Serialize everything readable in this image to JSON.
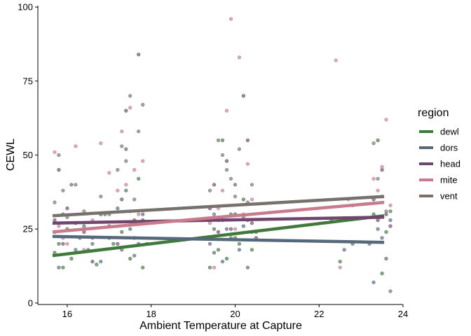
{
  "chart_data": {
    "type": "scatter",
    "title": "",
    "xlabel": "Ambient Temperature at Capture",
    "ylabel": "CEWL",
    "xlim": [
      15.3,
      24.0
    ],
    "ylim": [
      -0.5,
      100.5
    ],
    "x_ticks": [
      16,
      18,
      20,
      22,
      24
    ],
    "y_ticks": [
      0,
      25,
      50,
      75,
      100
    ],
    "grid": false,
    "legend": {
      "title": "region",
      "placement": "right"
    },
    "series": [
      {
        "name": "dewl",
        "color": "#3f7a3b",
        "trend": [
          [
            15.65,
            16.0
          ],
          [
            23.55,
            29.5
          ]
        ],
        "points": [
          [
            15.7,
            17
          ],
          [
            15.8,
            20
          ],
          [
            15.9,
            12
          ],
          [
            16.0,
            25
          ],
          [
            16.1,
            15
          ],
          [
            16.3,
            22
          ],
          [
            16.5,
            18
          ],
          [
            16.7,
            13
          ],
          [
            16.9,
            30
          ],
          [
            17.1,
            20
          ],
          [
            17.3,
            24
          ],
          [
            17.4,
            38
          ],
          [
            17.5,
            15
          ],
          [
            17.6,
            28
          ],
          [
            17.7,
            42
          ],
          [
            17.8,
            12
          ],
          [
            17.9,
            20
          ],
          [
            19.4,
            12
          ],
          [
            19.5,
            25
          ],
          [
            19.6,
            18
          ],
          [
            19.7,
            55
          ],
          [
            19.8,
            15
          ],
          [
            19.9,
            30
          ],
          [
            20.0,
            22
          ],
          [
            20.1,
            20
          ],
          [
            20.2,
            35
          ],
          [
            20.3,
            28
          ],
          [
            20.4,
            18
          ],
          [
            20.5,
            24
          ],
          [
            22.3,
            28
          ],
          [
            22.5,
            14
          ],
          [
            22.8,
            20
          ],
          [
            23.3,
            30
          ],
          [
            23.4,
            55
          ],
          [
            23.5,
            10
          ],
          [
            23.6,
            24
          ],
          [
            23.7,
            31
          ]
        ]
      },
      {
        "name": "dors",
        "color": "#55697a",
        "trend": [
          [
            15.65,
            22.5
          ],
          [
            23.55,
            20.5
          ]
        ],
        "points": [
          [
            15.7,
            24
          ],
          [
            15.8,
            12
          ],
          [
            15.9,
            30
          ],
          [
            16.1,
            40
          ],
          [
            16.2,
            18
          ],
          [
            16.4,
            26
          ],
          [
            16.6,
            20
          ],
          [
            16.8,
            14
          ],
          [
            17.0,
            22
          ],
          [
            17.2,
            32
          ],
          [
            17.3,
            18
          ],
          [
            17.4,
            52
          ],
          [
            17.5,
            25
          ],
          [
            17.6,
            16
          ],
          [
            17.7,
            20
          ],
          [
            17.8,
            30
          ],
          [
            19.4,
            20
          ],
          [
            19.5,
            17
          ],
          [
            19.6,
            28
          ],
          [
            19.7,
            14
          ],
          [
            19.8,
            25
          ],
          [
            19.9,
            22
          ],
          [
            20.0,
            40
          ],
          [
            20.1,
            18
          ],
          [
            20.2,
            26
          ],
          [
            20.3,
            12
          ],
          [
            20.4,
            24
          ],
          [
            22.6,
            18
          ],
          [
            23.2,
            20
          ],
          [
            23.3,
            7
          ],
          [
            23.4,
            25
          ],
          [
            23.5,
            22
          ],
          [
            23.6,
            15
          ],
          [
            23.7,
            28
          ]
        ]
      },
      {
        "name": "head",
        "color": "#70466e",
        "trend": [
          [
            15.65,
            27.0
          ],
          [
            23.55,
            29.0
          ]
        ],
        "points": [
          [
            15.7,
            28
          ],
          [
            15.8,
            45
          ],
          [
            15.9,
            20
          ],
          [
            16.0,
            32
          ],
          [
            16.2,
            27
          ],
          [
            16.4,
            24
          ],
          [
            16.6,
            14
          ],
          [
            16.8,
            30
          ],
          [
            17.0,
            26
          ],
          [
            17.2,
            20
          ],
          [
            17.3,
            35
          ],
          [
            17.4,
            65
          ],
          [
            17.5,
            31
          ],
          [
            17.6,
            22
          ],
          [
            17.7,
            84
          ],
          [
            17.8,
            28
          ],
          [
            19.4,
            32
          ],
          [
            19.5,
            40
          ],
          [
            19.6,
            24
          ],
          [
            19.7,
            28
          ],
          [
            19.8,
            48
          ],
          [
            19.9,
            25
          ],
          [
            20.0,
            30
          ],
          [
            20.2,
            70
          ],
          [
            20.3,
            55
          ],
          [
            20.4,
            27
          ],
          [
            20.5,
            22
          ],
          [
            23.3,
            35
          ],
          [
            23.4,
            28
          ],
          [
            23.5,
            45
          ],
          [
            23.6,
            30
          ],
          [
            23.7,
            26
          ]
        ]
      },
      {
        "name": "mite",
        "color": "#c77b8d",
        "trend": [
          [
            15.65,
            24.0
          ],
          [
            23.55,
            34.0
          ]
        ],
        "points": [
          [
            15.7,
            51
          ],
          [
            15.8,
            26
          ],
          [
            15.9,
            22
          ],
          [
            16.0,
            20
          ],
          [
            16.2,
            53
          ],
          [
            16.4,
            18
          ],
          [
            16.6,
            28
          ],
          [
            16.8,
            54
          ],
          [
            17.0,
            44
          ],
          [
            17.2,
            38
          ],
          [
            17.3,
            58
          ],
          [
            17.4,
            40
          ],
          [
            17.5,
            66
          ],
          [
            17.6,
            45
          ],
          [
            17.7,
            30
          ],
          [
            17.8,
            48
          ],
          [
            19.4,
            27
          ],
          [
            19.5,
            12
          ],
          [
            19.6,
            32
          ],
          [
            19.7,
            38
          ],
          [
            19.8,
            65
          ],
          [
            19.9,
            96
          ],
          [
            20.0,
            25
          ],
          [
            20.1,
            83
          ],
          [
            20.2,
            30
          ],
          [
            20.3,
            47
          ],
          [
            20.4,
            35
          ],
          [
            22.4,
            82
          ],
          [
            22.5,
            12
          ],
          [
            22.7,
            35
          ],
          [
            23.3,
            42
          ],
          [
            23.4,
            38
          ],
          [
            23.5,
            46
          ],
          [
            23.6,
            62
          ],
          [
            23.7,
            33
          ]
        ]
      },
      {
        "name": "vent",
        "color": "#76716c",
        "trend": [
          [
            15.65,
            29.5
          ],
          [
            23.55,
            36.0
          ]
        ],
        "points": [
          [
            15.7,
            34
          ],
          [
            15.8,
            50
          ],
          [
            15.9,
            38
          ],
          [
            16.0,
            29
          ],
          [
            16.2,
            40
          ],
          [
            16.4,
            31
          ],
          [
            16.6,
            22
          ],
          [
            16.8,
            36
          ],
          [
            17.0,
            30
          ],
          [
            17.2,
            45
          ],
          [
            17.3,
            53
          ],
          [
            17.4,
            48
          ],
          [
            17.5,
            70
          ],
          [
            17.6,
            35
          ],
          [
            17.7,
            58
          ],
          [
            17.8,
            67
          ],
          [
            19.4,
            38
          ],
          [
            19.5,
            30
          ],
          [
            19.6,
            55
          ],
          [
            19.7,
            50
          ],
          [
            19.8,
            45
          ],
          [
            19.9,
            42
          ],
          [
            20.0,
            36
          ],
          [
            20.1,
            52
          ],
          [
            20.2,
            29
          ],
          [
            20.3,
            34
          ],
          [
            20.4,
            40
          ],
          [
            22.8,
            33
          ],
          [
            23.3,
            54
          ],
          [
            23.4,
            42
          ],
          [
            23.5,
            36
          ],
          [
            23.6,
            31
          ],
          [
            23.7,
            4
          ]
        ]
      }
    ]
  }
}
